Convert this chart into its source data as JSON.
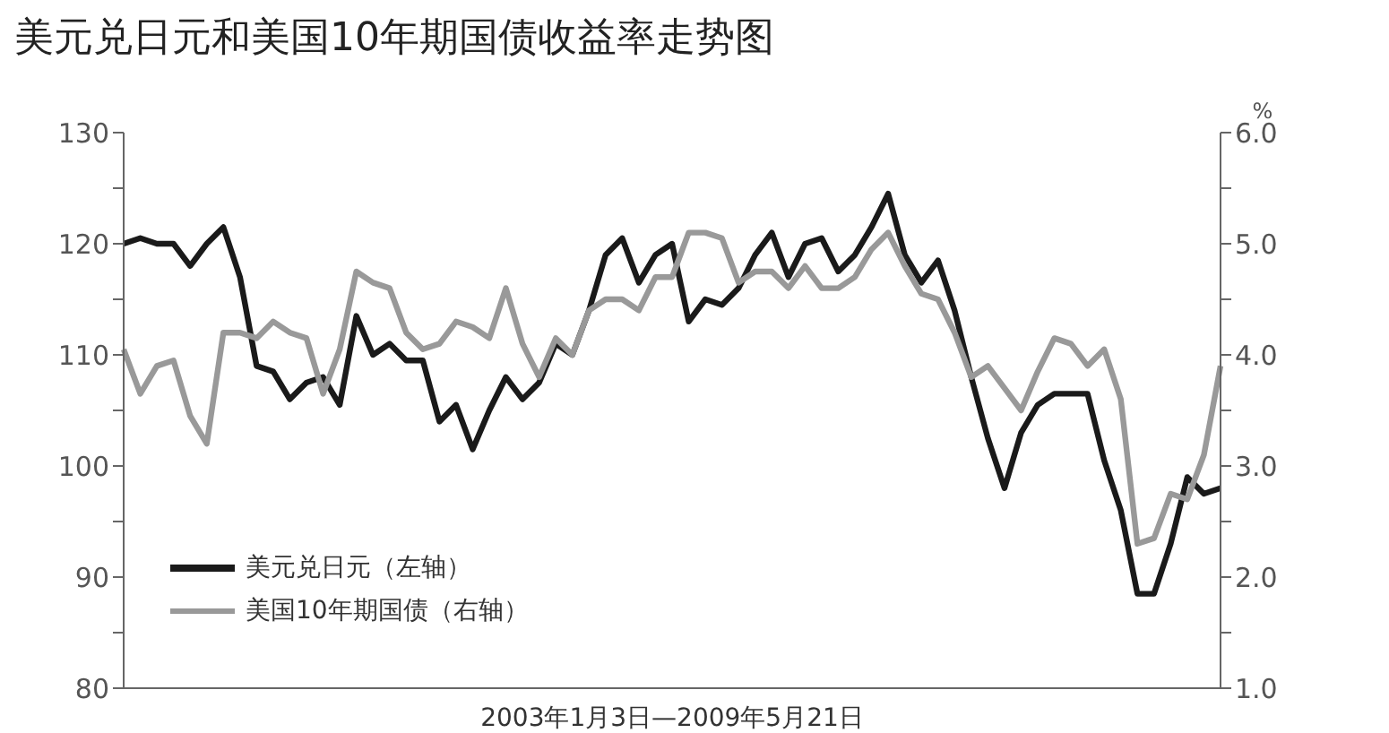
{
  "chart_data": {
    "type": "line",
    "title": "美元兑日元和美国10年期国债收益率走势图",
    "xlabel": "2003年1月3日—2009年5月21日",
    "y2label": "%",
    "categories": [
      null,
      null,
      null,
      null,
      null,
      null,
      null,
      null,
      null,
      null,
      null,
      null,
      null,
      null,
      null,
      null,
      null,
      null,
      null,
      null,
      null,
      null,
      null,
      null,
      null,
      null,
      null,
      null,
      null,
      null,
      null,
      null,
      null,
      null,
      null,
      null,
      null,
      null,
      null,
      null,
      null,
      null,
      null,
      null,
      null,
      null,
      null,
      null,
      null,
      null,
      null,
      null,
      null,
      null,
      null,
      null,
      null,
      null,
      null,
      null,
      null,
      null,
      null,
      null,
      null,
      null,
      null
    ],
    "series": [
      {
        "name": "美元兑日元（左轴）",
        "color": "#1a1a1a",
        "values": [
          120,
          120.5,
          120,
          120,
          118,
          120,
          121.5,
          117,
          109,
          108.5,
          106,
          107.5,
          108,
          105.5,
          113.5,
          110,
          111,
          109.5,
          109.5,
          104,
          105.5,
          101.5,
          105,
          108,
          106,
          107.5,
          111,
          110,
          114,
          119,
          120.5,
          116.5,
          119,
          120,
          113,
          115,
          114.5,
          116,
          119,
          121,
          117,
          120,
          120.5,
          117.5,
          119,
          121.5,
          124.5,
          119,
          116.5,
          118.5,
          114,
          108,
          102.5,
          98,
          103,
          105.5,
          106.5,
          106.5,
          106.5,
          100.5,
          96,
          88.5,
          88.5,
          93,
          99,
          97.5,
          98
        ]
      },
      {
        "name": "美国10年期国债（右轴）",
        "color": "#999999",
        "axis": "y2",
        "values": [
          4.05,
          3.65,
          3.9,
          3.95,
          3.45,
          3.2,
          4.2,
          4.2,
          4.15,
          4.3,
          4.2,
          4.15,
          3.65,
          4.05,
          4.75,
          4.65,
          4.6,
          4.2,
          4.05,
          4.1,
          4.3,
          4.25,
          4.15,
          4.6,
          4.1,
          3.8,
          4.15,
          4.0,
          4.4,
          4.5,
          4.5,
          4.4,
          4.7,
          4.7,
          5.1,
          5.1,
          5.05,
          4.65,
          4.75,
          4.75,
          4.6,
          4.8,
          4.6,
          4.6,
          4.7,
          4.95,
          5.1,
          4.8,
          4.55,
          4.5,
          4.2,
          3.8,
          3.9,
          3.7,
          3.5,
          3.85,
          4.15,
          4.1,
          3.9,
          4.05,
          3.6,
          2.3,
          2.35,
          2.75,
          2.7,
          3.1,
          3.9
        ]
      }
    ],
    "ylim": [
      80,
      130
    ],
    "yticks": [
      80,
      {
        "value": 85,
        "label": null
      },
      90,
      {
        "value": 95,
        "label": null
      },
      100,
      {
        "value": 105,
        "label": null
      },
      110,
      {
        "value": 115,
        "label": null
      },
      120,
      {
        "value": 125,
        "label": null
      },
      130
    ],
    "y2lim": [
      1.0,
      6.0
    ],
    "y2ticks": [
      {
        "value": 1,
        "label": "1.0"
      },
      {
        "value": 1.5,
        "label": null
      },
      {
        "value": 2,
        "label": "2.0"
      },
      {
        "value": 2.5,
        "label": null
      },
      {
        "value": 3,
        "label": "3.0"
      },
      {
        "value": 3.5,
        "label": null
      },
      {
        "value": 4,
        "label": "4.0"
      },
      {
        "value": 4.5,
        "label": null
      },
      {
        "value": 5,
        "label": "5.0"
      },
      {
        "value": 5.5,
        "label": null
      },
      {
        "value": 6,
        "label": "6.0"
      }
    ],
    "grid": false,
    "legend": "bottom left",
    "marker": "none",
    "line_style": "solid"
  }
}
